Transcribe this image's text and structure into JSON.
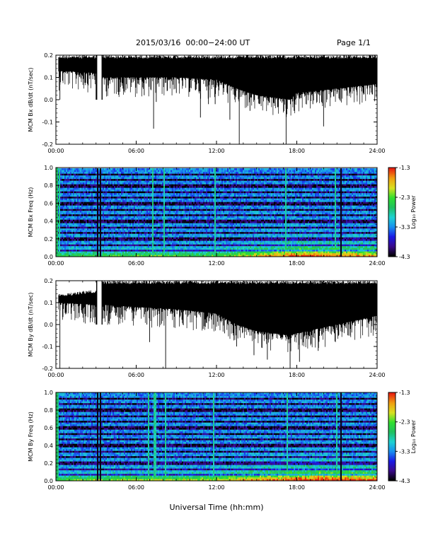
{
  "header": {
    "title": "2015/03/16  00:00−24:00 UT",
    "page": "Page 1/1"
  },
  "x_axis_label": "Universal Time (hh:mm)",
  "colors": {
    "trace": "#000000",
    "colorscale": [
      "#000000",
      "#3a0a8a",
      "#1a1ae6",
      "#1890f0",
      "#1ed2d2",
      "#20c060",
      "#30e030",
      "#d8e020",
      "#f0a010",
      "#e82010"
    ]
  },
  "chart_data": [
    {
      "type": "line",
      "ylabel": "MCM Bx dB/dt (nT/sec)",
      "xlim": [
        0,
        24
      ],
      "ylim": [
        -0.2,
        0.2
      ],
      "x_ticks": [
        "00:00",
        "06:00",
        "12:00",
        "18:00",
        "24:00"
      ],
      "y_ticks": [
        -0.2,
        -0.1,
        0.0,
        0.1,
        0.2
      ],
      "gaps_hours": [
        [
          3.05,
          3.45
        ]
      ],
      "envelope": {
        "x": [
          0.2,
          3.0,
          3.5,
          6,
          9,
          12,
          13.5,
          15,
          17.5,
          18,
          21,
          24
        ],
        "upper": [
          0.2,
          0.2,
          0.2,
          0.2,
          0.2,
          0.2,
          0.2,
          0.2,
          0.2,
          0.2,
          0.2,
          0.2
        ],
        "lower": [
          0.13,
          0.12,
          0.1,
          0.1,
          0.1,
          0.09,
          0.05,
          0.02,
          0.0,
          0.03,
          0.05,
          0.07
        ]
      },
      "spikes": [
        [
          0.3,
          0.0
        ],
        [
          3.0,
          0.0
        ],
        [
          6.6,
          0.02
        ],
        [
          7.5,
          -0.01
        ],
        [
          7.3,
          -0.13
        ],
        [
          9.0,
          0.03
        ],
        [
          10.8,
          -0.08
        ],
        [
          11.4,
          -0.02
        ],
        [
          11.9,
          -0.02
        ],
        [
          13.0,
          -0.09
        ],
        [
          13.7,
          -0.21
        ],
        [
          14.5,
          -0.05
        ],
        [
          15.2,
          -0.02
        ],
        [
          17.2,
          -0.2
        ],
        [
          17.8,
          -0.05
        ],
        [
          19.2,
          -0.02
        ],
        [
          20.0,
          -0.12
        ],
        [
          21.2,
          0.0
        ],
        [
          22.5,
          0.02
        ]
      ]
    },
    {
      "type": "heatmap",
      "ylabel": "MCM Bx Freq (Hz)",
      "xlim": [
        0,
        24
      ],
      "ylim": [
        0.0,
        1.0
      ],
      "x_ticks": [
        "00:00",
        "06:00",
        "12:00",
        "18:00",
        "24:00"
      ],
      "y_ticks": [
        0.0,
        0.2,
        0.4,
        0.6,
        0.8,
        1.0
      ],
      "colorbar": {
        "label": "Log₁₀ Power",
        "range": [
          -4.3,
          -1.3
        ],
        "ticks": [
          -1.3,
          -2.3,
          -3.3,
          -4.3
        ]
      },
      "dark_columns_hours": [
        3.15,
        3.35,
        21.3
      ],
      "bright_columns_hours": [
        0.25,
        7.2,
        8.1,
        11.9,
        17.2,
        20.9
      ],
      "harmonic_freqs_hz": [
        0.067,
        0.133,
        0.2,
        0.267,
        0.333,
        0.4,
        0.467,
        0.533,
        0.6,
        0.667,
        0.733,
        0.8,
        0.867,
        0.933
      ],
      "activity_profile": {
        "x": [
          0,
          4,
          8,
          12,
          14,
          16,
          18,
          20,
          22,
          24
        ],
        "level": [
          0.15,
          0.2,
          0.25,
          0.2,
          0.45,
          0.6,
          0.75,
          0.7,
          0.65,
          0.6
        ]
      }
    },
    {
      "type": "line",
      "ylabel": "MCM By dB/dt (nT/sec)",
      "xlim": [
        0,
        24
      ],
      "ylim": [
        -0.2,
        0.2
      ],
      "x_ticks": [
        "00:00",
        "06:00",
        "12:00",
        "18:00",
        "24:00"
      ],
      "y_ticks": [
        -0.2,
        -0.1,
        0.0,
        0.1,
        0.2
      ],
      "gaps_hours": [
        [
          3.05,
          3.45
        ]
      ],
      "envelope": {
        "x": [
          0.2,
          3.0,
          3.5,
          6,
          9,
          12,
          13.5,
          15,
          17.5,
          18,
          21,
          24
        ],
        "upper": [
          0.14,
          0.16,
          0.2,
          0.2,
          0.2,
          0.2,
          0.2,
          0.2,
          0.2,
          0.2,
          0.2,
          0.2
        ],
        "lower": [
          0.1,
          0.09,
          0.09,
          0.08,
          0.07,
          0.05,
          0.0,
          -0.03,
          -0.05,
          -0.04,
          0.0,
          0.04
        ]
      },
      "spikes": [
        [
          0.3,
          -0.2
        ],
        [
          3.0,
          0.0
        ],
        [
          6.8,
          0.0
        ],
        [
          8.2,
          -0.2
        ],
        [
          7.0,
          -0.08
        ],
        [
          9.5,
          0.0
        ],
        [
          11.0,
          -0.02
        ],
        [
          12.6,
          -0.04
        ],
        [
          13.5,
          -0.1
        ],
        [
          14.8,
          -0.14
        ],
        [
          15.8,
          -0.16
        ],
        [
          17.5,
          -0.21
        ],
        [
          18.2,
          -0.17
        ],
        [
          19.6,
          -0.12
        ],
        [
          20.8,
          -0.04
        ],
        [
          22.0,
          -0.02
        ]
      ]
    },
    {
      "type": "heatmap",
      "ylabel": "MCM By Freq (Hz)",
      "xlim": [
        0,
        24
      ],
      "ylim": [
        0.0,
        1.0
      ],
      "x_ticks": [
        "00:00",
        "06:00",
        "12:00",
        "18:00",
        "24:00"
      ],
      "y_ticks": [
        0.0,
        0.2,
        0.4,
        0.6,
        0.8,
        1.0
      ],
      "colorbar": {
        "label": "Log₁₀ Power",
        "range": [
          -4.3,
          -1.3
        ],
        "ticks": [
          -1.3,
          -2.3,
          -3.3,
          -4.3
        ]
      },
      "dark_columns_hours": [
        3.15,
        3.35,
        21.3
      ],
      "bright_columns_hours": [
        0.2,
        6.9,
        7.4,
        8.2,
        11.8,
        17.3,
        21.0
      ],
      "harmonic_freqs_hz": [
        0.067,
        0.133,
        0.2,
        0.267,
        0.333,
        0.4,
        0.467,
        0.533,
        0.6,
        0.667,
        0.733,
        0.8,
        0.867,
        0.933
      ],
      "activity_profile": {
        "x": [
          0,
          4,
          8,
          12,
          14,
          16,
          18,
          20,
          22,
          24
        ],
        "level": [
          0.25,
          0.3,
          0.35,
          0.4,
          0.55,
          0.65,
          0.8,
          0.85,
          0.8,
          0.75
        ]
      }
    }
  ]
}
